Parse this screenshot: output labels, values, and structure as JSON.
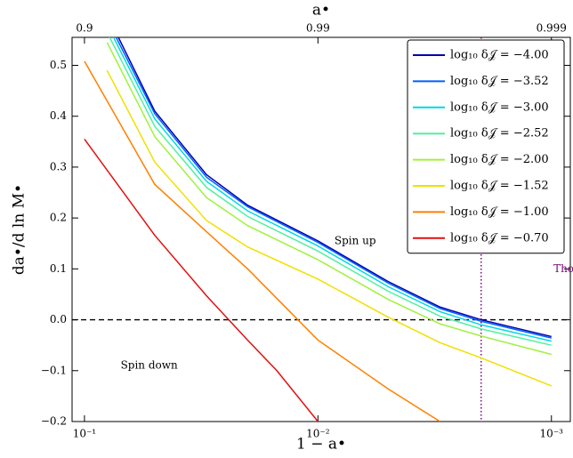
{
  "chart_data": {
    "type": "line",
    "xlabel": "1 − a•",
    "ylabel": "da•/d ln M•",
    "x2label": "a•",
    "xscale": "log",
    "xlim": [
      0.113,
      0.00083
    ],
    "ylim": [
      -0.2,
      0.555
    ],
    "xticks": [
      {
        "value": 0.1,
        "label": "10⁻¹"
      },
      {
        "value": 0.01,
        "label": "10⁻²"
      },
      {
        "value": 0.001,
        "label": "10⁻³"
      }
    ],
    "x2ticks": [
      0.9,
      0.99,
      0.999
    ],
    "yticks": [
      {
        "value": -0.2,
        "label": "−0.2"
      },
      {
        "value": -0.1,
        "label": "−0.1"
      },
      {
        "value": 0,
        "label": "0.0"
      },
      0.1,
      0.2,
      0.3,
      0.4,
      0.5
    ],
    "hline": 0,
    "vline": 0.002,
    "vline_color": "#800080",
    "annotations": [
      {
        "text": "Thorne limit",
        "x": 0.00098,
        "y": 0.1,
        "color": "#800080"
      },
      {
        "text": "Spin up",
        "x": 0.0085,
        "y": 0.155
      },
      {
        "text": "Spin down",
        "x": 0.07,
        "y": -0.09
      }
    ],
    "legend": "upper right",
    "series": [
      {
        "name": "log₁₀ δ𝒥 = −4.00",
        "color": "#0000b0",
        "x": [
          0.08,
          0.05,
          0.03,
          0.02,
          0.01,
          0.005,
          0.003,
          0.002,
          0.001
        ],
        "values": [
          0.6,
          0.41,
          0.285,
          0.225,
          0.155,
          0.075,
          0.025,
          0.0,
          -0.033
        ]
      },
      {
        "name": "log₁₀ δ𝒥 = −3.52",
        "color": "#0060ff",
        "x": [
          0.08,
          0.05,
          0.03,
          0.02,
          0.01,
          0.005,
          0.003,
          0.002,
          0.001
        ],
        "values": [
          0.59,
          0.405,
          0.28,
          0.222,
          0.152,
          0.072,
          0.022,
          -0.003,
          -0.036
        ]
      },
      {
        "name": "log₁₀ δ𝒥 = −3.00",
        "color": "#00d8e8",
        "x": [
          0.08,
          0.05,
          0.03,
          0.02,
          0.01,
          0.005,
          0.003,
          0.002,
          0.001
        ],
        "values": [
          0.58,
          0.395,
          0.272,
          0.214,
          0.145,
          0.065,
          0.016,
          -0.01,
          -0.042
        ]
      },
      {
        "name": "log₁₀ δ𝒥 = −2.52",
        "color": "#50f0a0",
        "x": [
          0.08,
          0.05,
          0.03,
          0.02,
          0.01,
          0.005,
          0.003,
          0.002,
          0.001
        ],
        "values": [
          0.565,
          0.38,
          0.26,
          0.203,
          0.135,
          0.056,
          0.007,
          -0.018,
          -0.05
        ]
      },
      {
        "name": "log₁₀ δ𝒥 = −2.00",
        "color": "#a0f040",
        "x": [
          0.08,
          0.05,
          0.03,
          0.02,
          0.01,
          0.005,
          0.003,
          0.002,
          0.001
        ],
        "values": [
          0.545,
          0.36,
          0.24,
          0.185,
          0.118,
          0.04,
          -0.008,
          -0.032,
          -0.068
        ]
      },
      {
        "name": "log₁₀ δ𝒥 = −1.52",
        "color": "#f0e000",
        "x": [
          0.08,
          0.05,
          0.03,
          0.02,
          0.01,
          0.005,
          0.003,
          0.002,
          0.001
        ],
        "values": [
          0.49,
          0.31,
          0.195,
          0.143,
          0.08,
          0.005,
          -0.045,
          -0.075,
          -0.13
        ]
      },
      {
        "name": "log₁₀ δ𝒥 = −1.00",
        "color": "#ff8000",
        "x": [
          0.1,
          0.05,
          0.03,
          0.02,
          0.01,
          0.005,
          0.003
        ],
        "values": [
          0.508,
          0.266,
          0.173,
          0.1,
          -0.04,
          -0.136,
          -0.2
        ]
      },
      {
        "name": "log₁₀ δ𝒥 = −0.70",
        "color": "#e01010",
        "x": [
          0.1,
          0.05,
          0.03,
          0.02,
          0.015,
          0.01
        ],
        "values": [
          0.355,
          0.166,
          0.047,
          -0.04,
          -0.1,
          -0.2
        ]
      }
    ]
  }
}
